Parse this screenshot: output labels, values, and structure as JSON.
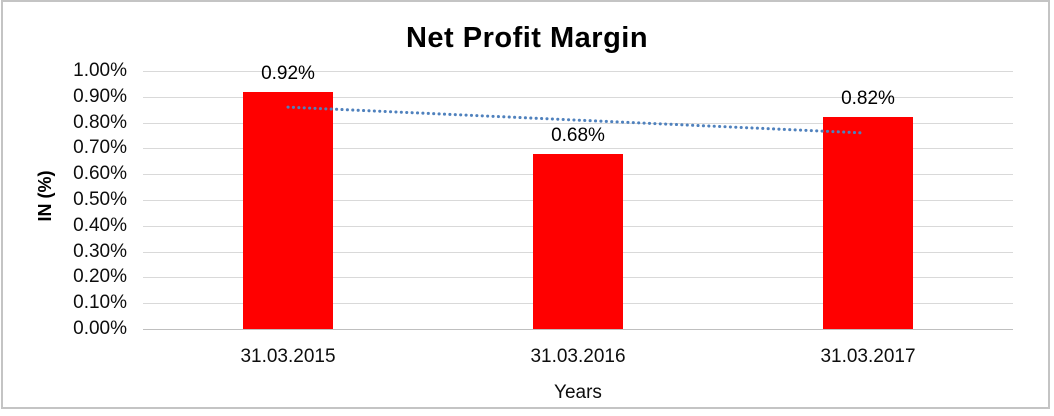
{
  "frame": {
    "border_color": "#c4c4c4",
    "background_color": "#ffffff"
  },
  "chart_data": {
    "type": "bar",
    "title": "Net Profit Margin",
    "categories": [
      "31.03.2015",
      "31.03.2016",
      "31.03.2017"
    ],
    "values": [
      0.92,
      0.68,
      0.82
    ],
    "data_labels": [
      "0.92%",
      "0.68%",
      "0.82%"
    ],
    "xlabel": "Years",
    "ylabel": "IN (%)",
    "ylim": [
      0,
      1.0
    ],
    "ytick_step": 0.1,
    "ytick_labels": [
      "0.00%",
      "0.10%",
      "0.20%",
      "0.30%",
      "0.40%",
      "0.50%",
      "0.60%",
      "0.70%",
      "0.80%",
      "0.90%",
      "1.00%"
    ],
    "grid": true,
    "legend_position": "none",
    "bar_color": "#ff0000",
    "gridline_color": "#d9d9d9",
    "axis_line_color": "#bfbfbf",
    "text_color": "#000000",
    "trendline": {
      "type": "linear",
      "style": "dotted",
      "color": "#4f81bd",
      "start_value": 0.86,
      "end_value": 0.76
    }
  }
}
